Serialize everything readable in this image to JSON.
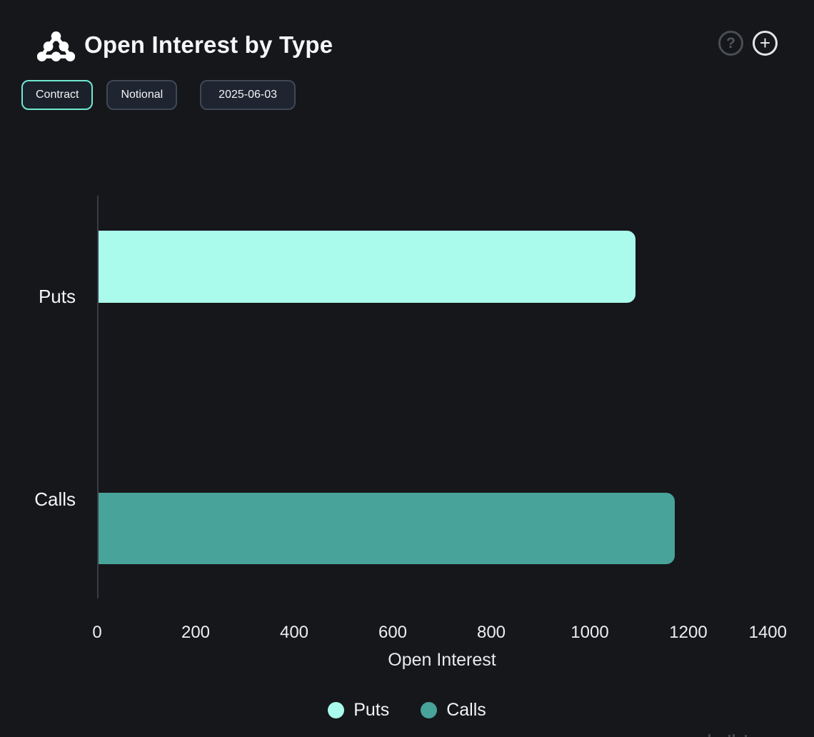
{
  "header": {
    "title": "Open Interest by Type",
    "help_glyph": "?",
    "add_glyph": "+"
  },
  "controls": {
    "buttons": [
      {
        "label": "Contract",
        "selected": true
      },
      {
        "label": "Notional",
        "selected": false
      },
      {
        "label": "2025-06-03",
        "selected": false
      }
    ]
  },
  "chart_data": {
    "type": "bar",
    "orientation": "horizontal",
    "title": "Open Interest by Type",
    "categories": [
      "Puts",
      "Calls"
    ],
    "values": [
      1090,
      1170
    ],
    "colors": [
      "#aafbec",
      "#48a49a"
    ],
    "xlabel": "Open Interest",
    "ylabel": "",
    "xlim": [
      0,
      1400
    ],
    "xticks": [
      0,
      200,
      400,
      600,
      800,
      1000,
      1200,
      1400
    ],
    "grid": false,
    "legend": [
      {
        "label": "Puts",
        "color": "#aafbec"
      },
      {
        "label": "Calls",
        "color": "#48a49a"
      }
    ],
    "legend_position": "bottom"
  },
  "colors": {
    "background": "#16171b",
    "accent_selected_border": "#6fe8d1",
    "button_border": "#3f4855",
    "axis_line": "#393d44",
    "text": "#f2f3f5"
  }
}
